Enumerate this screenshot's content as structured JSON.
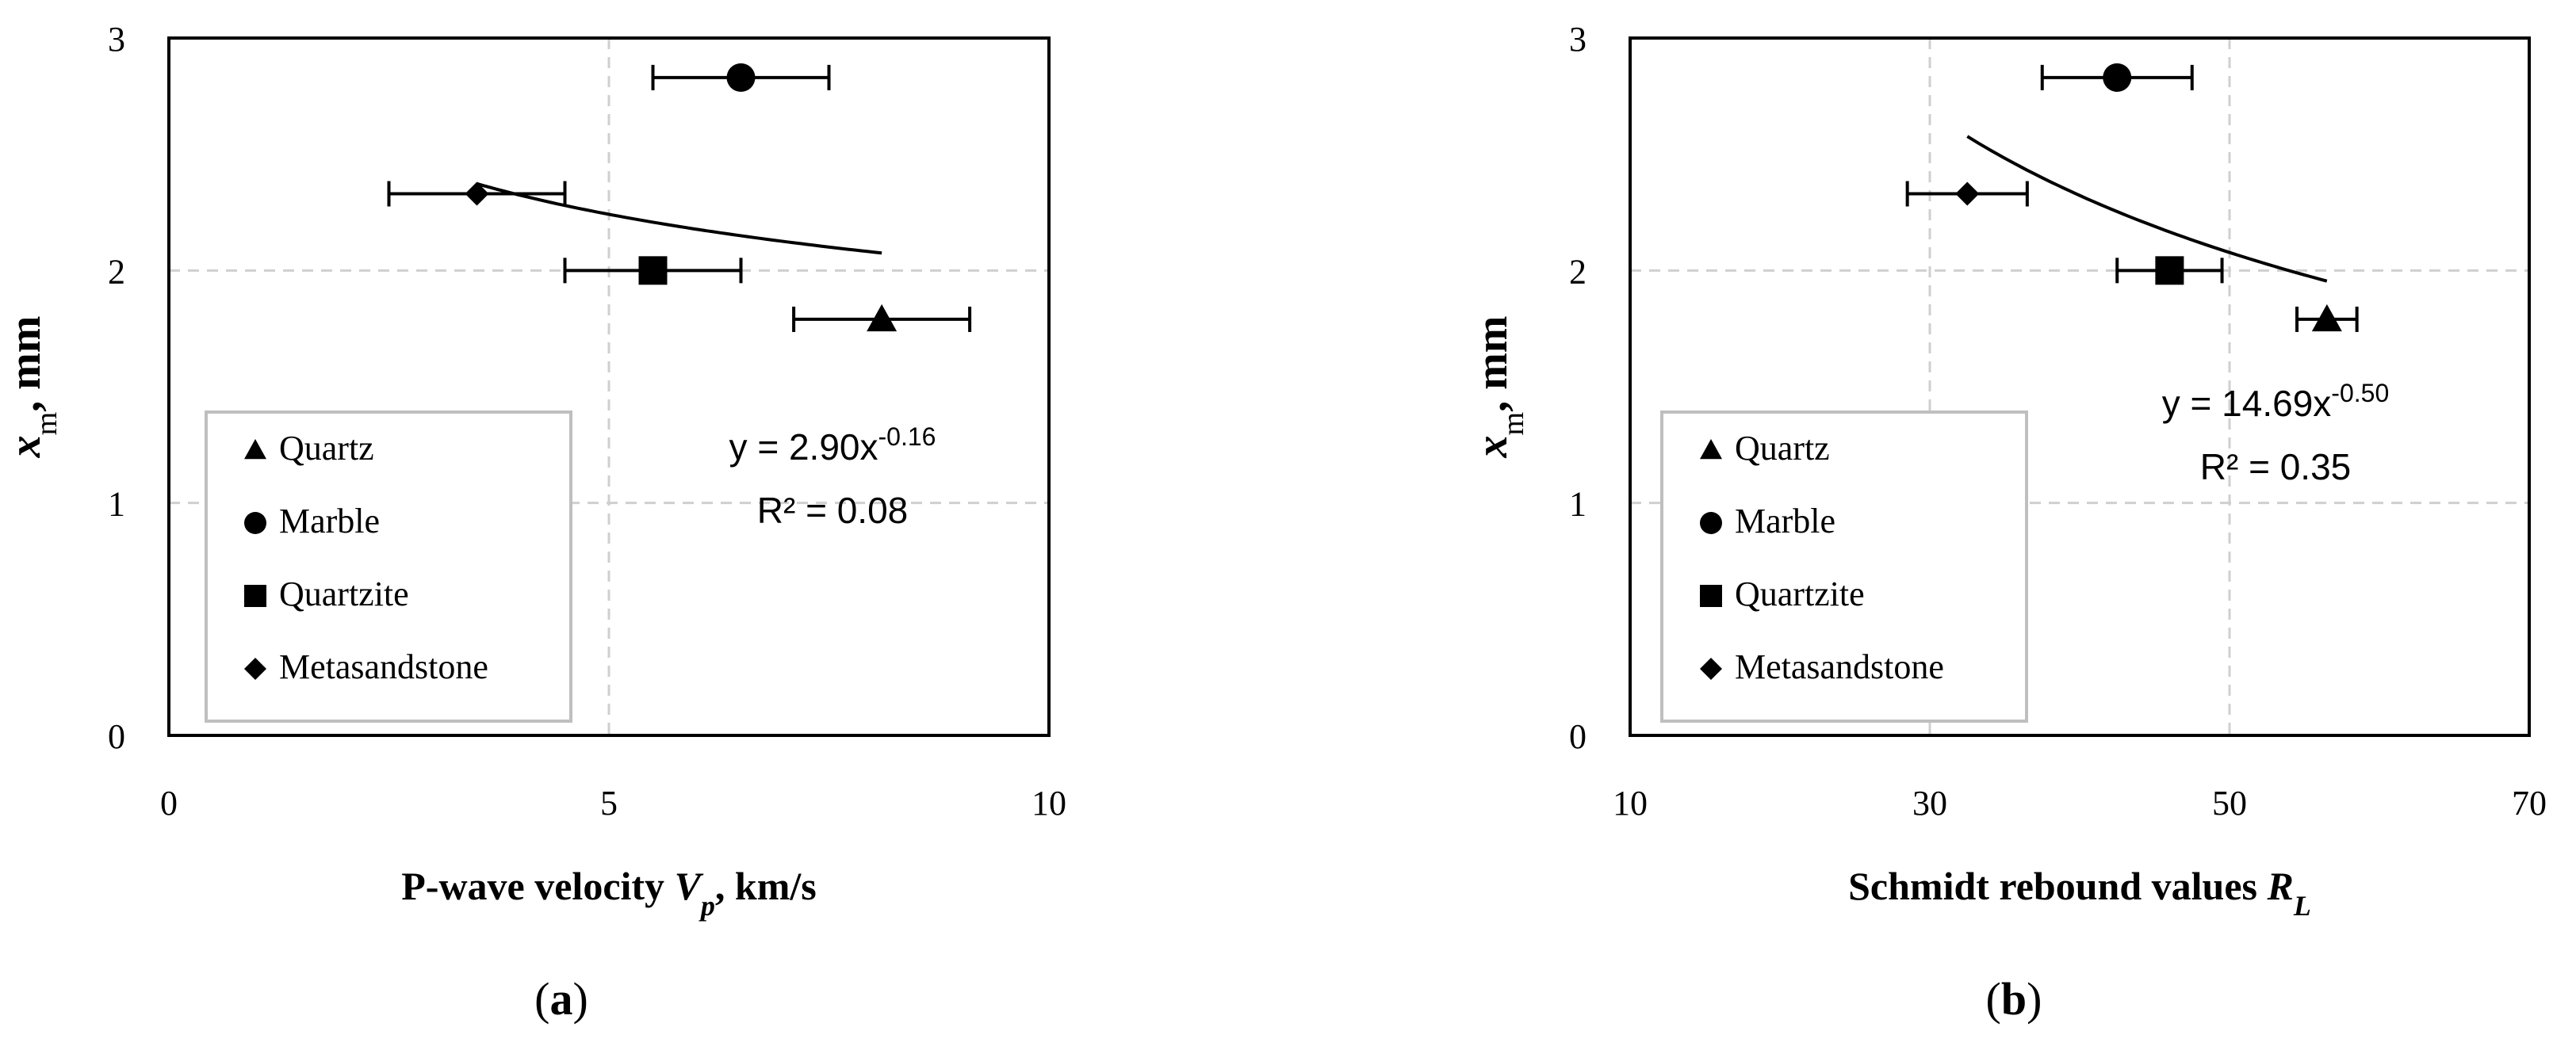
{
  "chart_data": [
    {
      "type": "scatter",
      "panel_label": "a",
      "xlabel": {
        "main": "P-wave velocity ",
        "var": "V",
        "sub": "p",
        "unit": ", km/s"
      },
      "ylabel": {
        "var": "x",
        "sub": "m",
        "unit": ", mm"
      },
      "xlim": [
        0,
        10
      ],
      "ylim": [
        0,
        3
      ],
      "xticks": [
        0,
        5,
        10
      ],
      "yticks": [
        0,
        1,
        2,
        3
      ],
      "grid": true,
      "legend_position": "bottom-left",
      "series": [
        {
          "name": "Quartz",
          "marker": "triangle",
          "x": 8.1,
          "y": 1.79,
          "xerr": 1.0
        },
        {
          "name": "Marble",
          "marker": "circle",
          "x": 6.5,
          "y": 2.83,
          "xerr": 1.0
        },
        {
          "name": "Quartzite",
          "marker": "square",
          "x": 5.5,
          "y": 2.0,
          "xerr": 1.0
        },
        {
          "name": "Metasandstone",
          "marker": "diamond",
          "x": 3.5,
          "y": 2.33,
          "xerr": 1.0
        }
      ],
      "trendline": {
        "a": 2.9,
        "b": -0.16,
        "xrange": [
          3.5,
          8.1
        ],
        "equation": "y = 2.90x",
        "exponent": "-0.16",
        "r2": "R² = 0.08",
        "label_position": "right-middle"
      }
    },
    {
      "type": "scatter",
      "panel_label": "b",
      "xlabel": {
        "main": "Schmidt rebound values ",
        "var": "R",
        "sub": "L",
        "unit": ""
      },
      "ylabel": {
        "var": "x",
        "sub": "m",
        "unit": ", mm"
      },
      "xlim": [
        10,
        70
      ],
      "ylim": [
        0,
        3
      ],
      "xticks": [
        10,
        30,
        50,
        70
      ],
      "yticks": [
        0,
        1,
        2,
        3
      ],
      "grid": true,
      "legend_position": "bottom-left",
      "series": [
        {
          "name": "Quartz",
          "marker": "triangle",
          "x": 56.5,
          "y": 1.79,
          "xerr": 2.0
        },
        {
          "name": "Marble",
          "marker": "circle",
          "x": 42.5,
          "y": 2.83,
          "xerr": 5.0
        },
        {
          "name": "Quartzite",
          "marker": "square",
          "x": 46.0,
          "y": 2.0,
          "xerr": 3.5
        },
        {
          "name": "Metasandstone",
          "marker": "diamond",
          "x": 32.5,
          "y": 2.33,
          "xerr": 4.0
        }
      ],
      "trendline": {
        "a": 14.69,
        "b": -0.5,
        "xrange": [
          32.5,
          56.5
        ],
        "equation": "y = 14.69x",
        "exponent": "-0.50",
        "r2": "R² = 0.35",
        "label_position": "right-upper-middle"
      }
    }
  ]
}
